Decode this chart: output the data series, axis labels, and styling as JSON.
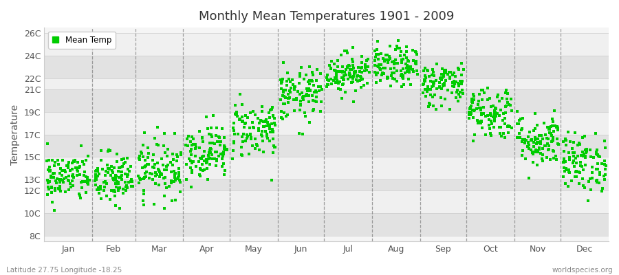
{
  "title": "Monthly Mean Temperatures 1901 - 2009",
  "ylabel": "Temperature",
  "bottom_left_label": "Latitude 27.75 Longitude -18.25",
  "bottom_right_label": "worldspecies.org",
  "legend_label": "Mean Temp",
  "dot_color": "#00CC00",
  "background_color": "#FFFFFF",
  "plot_bg_color": "#F5F5F5",
  "band_light": "#F0F0F0",
  "band_dark": "#E2E2E2",
  "ytick_labels": [
    "8C",
    "10C",
    "12C",
    "13C",
    "15C",
    "17C",
    "19C",
    "21C",
    "22C",
    "24C",
    "26C"
  ],
  "ytick_values": [
    8,
    10,
    12,
    13,
    15,
    17,
    19,
    21,
    22,
    24,
    26
  ],
  "ylim": [
    7.5,
    26.5
  ],
  "months": [
    "Jan",
    "Feb",
    "Mar",
    "Apr",
    "May",
    "Jun",
    "Jul",
    "Aug",
    "Sep",
    "Oct",
    "Nov",
    "Dec"
  ],
  "month_means": [
    13.2,
    13.0,
    14.0,
    15.5,
    17.5,
    20.5,
    22.5,
    23.0,
    21.5,
    19.0,
    16.5,
    14.5
  ],
  "month_stds": [
    1.1,
    1.2,
    1.3,
    1.2,
    1.3,
    1.2,
    0.9,
    0.9,
    1.0,
    1.2,
    1.2,
    1.3
  ],
  "n_years": 109,
  "seed": 42
}
